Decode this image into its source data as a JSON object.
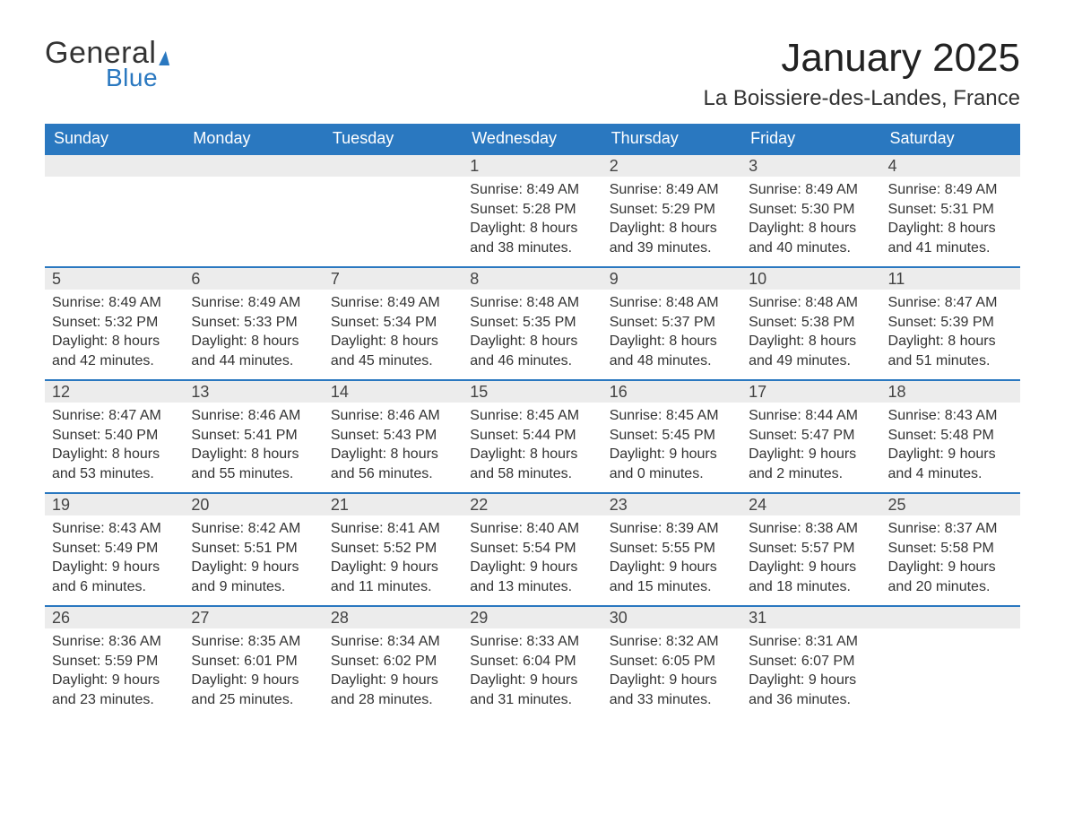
{
  "brand": {
    "name_part1": "General",
    "name_part2": "Blue",
    "color_primary": "#2a78c0",
    "color_text": "#333333"
  },
  "title": {
    "month_year": "January 2025",
    "location": "La Boissiere-des-Landes, France"
  },
  "styling": {
    "header_bg": "#2a78c0",
    "header_text_color": "#ffffff",
    "daynum_bg": "#ececec",
    "row_border_color": "#2a78c0",
    "page_bg": "#ffffff",
    "body_text_color": "#333333",
    "month_title_fontsize": 44,
    "location_fontsize": 24,
    "dayheader_fontsize": 18,
    "detail_fontsize": 16,
    "columns": 7,
    "rows": 5
  },
  "day_headers": [
    "Sunday",
    "Monday",
    "Tuesday",
    "Wednesday",
    "Thursday",
    "Friday",
    "Saturday"
  ],
  "labels": {
    "sunrise": "Sunrise:",
    "sunset": "Sunset:",
    "daylight": "Daylight:"
  },
  "weeks": [
    [
      {
        "blank": true
      },
      {
        "blank": true
      },
      {
        "blank": true
      },
      {
        "day": "1",
        "sunrise": "8:49 AM",
        "sunset": "5:28 PM",
        "daylight_l1": "8 hours",
        "daylight_l2": "and 38 minutes."
      },
      {
        "day": "2",
        "sunrise": "8:49 AM",
        "sunset": "5:29 PM",
        "daylight_l1": "8 hours",
        "daylight_l2": "and 39 minutes."
      },
      {
        "day": "3",
        "sunrise": "8:49 AM",
        "sunset": "5:30 PM",
        "daylight_l1": "8 hours",
        "daylight_l2": "and 40 minutes."
      },
      {
        "day": "4",
        "sunrise": "8:49 AM",
        "sunset": "5:31 PM",
        "daylight_l1": "8 hours",
        "daylight_l2": "and 41 minutes."
      }
    ],
    [
      {
        "day": "5",
        "sunrise": "8:49 AM",
        "sunset": "5:32 PM",
        "daylight_l1": "8 hours",
        "daylight_l2": "and 42 minutes."
      },
      {
        "day": "6",
        "sunrise": "8:49 AM",
        "sunset": "5:33 PM",
        "daylight_l1": "8 hours",
        "daylight_l2": "and 44 minutes."
      },
      {
        "day": "7",
        "sunrise": "8:49 AM",
        "sunset": "5:34 PM",
        "daylight_l1": "8 hours",
        "daylight_l2": "and 45 minutes."
      },
      {
        "day": "8",
        "sunrise": "8:48 AM",
        "sunset": "5:35 PM",
        "daylight_l1": "8 hours",
        "daylight_l2": "and 46 minutes."
      },
      {
        "day": "9",
        "sunrise": "8:48 AM",
        "sunset": "5:37 PM",
        "daylight_l1": "8 hours",
        "daylight_l2": "and 48 minutes."
      },
      {
        "day": "10",
        "sunrise": "8:48 AM",
        "sunset": "5:38 PM",
        "daylight_l1": "8 hours",
        "daylight_l2": "and 49 minutes."
      },
      {
        "day": "11",
        "sunrise": "8:47 AM",
        "sunset": "5:39 PM",
        "daylight_l1": "8 hours",
        "daylight_l2": "and 51 minutes."
      }
    ],
    [
      {
        "day": "12",
        "sunrise": "8:47 AM",
        "sunset": "5:40 PM",
        "daylight_l1": "8 hours",
        "daylight_l2": "and 53 minutes."
      },
      {
        "day": "13",
        "sunrise": "8:46 AM",
        "sunset": "5:41 PM",
        "daylight_l1": "8 hours",
        "daylight_l2": "and 55 minutes."
      },
      {
        "day": "14",
        "sunrise": "8:46 AM",
        "sunset": "5:43 PM",
        "daylight_l1": "8 hours",
        "daylight_l2": "and 56 minutes."
      },
      {
        "day": "15",
        "sunrise": "8:45 AM",
        "sunset": "5:44 PM",
        "daylight_l1": "8 hours",
        "daylight_l2": "and 58 minutes."
      },
      {
        "day": "16",
        "sunrise": "8:45 AM",
        "sunset": "5:45 PM",
        "daylight_l1": "9 hours",
        "daylight_l2": "and 0 minutes."
      },
      {
        "day": "17",
        "sunrise": "8:44 AM",
        "sunset": "5:47 PM",
        "daylight_l1": "9 hours",
        "daylight_l2": "and 2 minutes."
      },
      {
        "day": "18",
        "sunrise": "8:43 AM",
        "sunset": "5:48 PM",
        "daylight_l1": "9 hours",
        "daylight_l2": "and 4 minutes."
      }
    ],
    [
      {
        "day": "19",
        "sunrise": "8:43 AM",
        "sunset": "5:49 PM",
        "daylight_l1": "9 hours",
        "daylight_l2": "and 6 minutes."
      },
      {
        "day": "20",
        "sunrise": "8:42 AM",
        "sunset": "5:51 PM",
        "daylight_l1": "9 hours",
        "daylight_l2": "and 9 minutes."
      },
      {
        "day": "21",
        "sunrise": "8:41 AM",
        "sunset": "5:52 PM",
        "daylight_l1": "9 hours",
        "daylight_l2": "and 11 minutes."
      },
      {
        "day": "22",
        "sunrise": "8:40 AM",
        "sunset": "5:54 PM",
        "daylight_l1": "9 hours",
        "daylight_l2": "and 13 minutes."
      },
      {
        "day": "23",
        "sunrise": "8:39 AM",
        "sunset": "5:55 PM",
        "daylight_l1": "9 hours",
        "daylight_l2": "and 15 minutes."
      },
      {
        "day": "24",
        "sunrise": "8:38 AM",
        "sunset": "5:57 PM",
        "daylight_l1": "9 hours",
        "daylight_l2": "and 18 minutes."
      },
      {
        "day": "25",
        "sunrise": "8:37 AM",
        "sunset": "5:58 PM",
        "daylight_l1": "9 hours",
        "daylight_l2": "and 20 minutes."
      }
    ],
    [
      {
        "day": "26",
        "sunrise": "8:36 AM",
        "sunset": "5:59 PM",
        "daylight_l1": "9 hours",
        "daylight_l2": "and 23 minutes."
      },
      {
        "day": "27",
        "sunrise": "8:35 AM",
        "sunset": "6:01 PM",
        "daylight_l1": "9 hours",
        "daylight_l2": "and 25 minutes."
      },
      {
        "day": "28",
        "sunrise": "8:34 AM",
        "sunset": "6:02 PM",
        "daylight_l1": "9 hours",
        "daylight_l2": "and 28 minutes."
      },
      {
        "day": "29",
        "sunrise": "8:33 AM",
        "sunset": "6:04 PM",
        "daylight_l1": "9 hours",
        "daylight_l2": "and 31 minutes."
      },
      {
        "day": "30",
        "sunrise": "8:32 AM",
        "sunset": "6:05 PM",
        "daylight_l1": "9 hours",
        "daylight_l2": "and 33 minutes."
      },
      {
        "day": "31",
        "sunrise": "8:31 AM",
        "sunset": "6:07 PM",
        "daylight_l1": "9 hours",
        "daylight_l2": "and 36 minutes."
      },
      {
        "blank": true
      }
    ]
  ]
}
